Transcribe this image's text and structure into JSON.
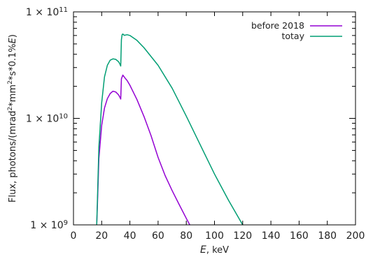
{
  "chart_data": {
    "type": "line",
    "xlabel": "E, keV",
    "ylabel": "Flux, photons/(mrad²*mm²*s*0.1%E)",
    "xlim": [
      0,
      200
    ],
    "ylim": [
      1000000000,
      100000000000
    ],
    "yscale": "log",
    "x_ticks": [
      "0",
      "20",
      "40",
      "60",
      "80",
      "100",
      "120",
      "140",
      "160",
      "180",
      "200"
    ],
    "y_ticks": [
      {
        "mantissa": "1 × 10",
        "exp": "9",
        "value": 1000000000
      },
      {
        "mantissa": "1 × 10",
        "exp": "10",
        "value": 10000000000
      },
      {
        "mantissa": "1 × 10",
        "exp": "11",
        "value": 100000000000
      }
    ],
    "legend_position": "top-right",
    "grid": false,
    "series": [
      {
        "name": "before 2018",
        "color": "#9400d3",
        "x": [
          16.5,
          17,
          18,
          20,
          22,
          24,
          26,
          28,
          30,
          32,
          33,
          33.5,
          34,
          35,
          36,
          37,
          38,
          40,
          45,
          50,
          55,
          60,
          65,
          70,
          75,
          80,
          82.5
        ],
        "y": [
          1000000000.0,
          1600000000.0,
          4200000000.0,
          8600000000.0,
          12500000000.0,
          15300000000.0,
          17100000000.0,
          18000000000.0,
          17700000000.0,
          16600000000.0,
          15700000000.0,
          15200000000.0,
          23500000000.0,
          25500000000.0,
          24500000000.0,
          23500000000.0,
          22700000000.0,
          20500000000.0,
          15000000000.0,
          10400000000.0,
          6900000000.0,
          4300000000.0,
          2900000000.0,
          2100000000.0,
          1550000000.0,
          1150000000.0,
          1000000000.0
        ]
      },
      {
        "name": "totay",
        "color": "#009e73",
        "x": [
          16.5,
          17,
          18,
          20,
          22,
          24,
          26,
          28,
          30,
          32,
          33,
          33.5,
          34,
          34.5,
          35,
          36,
          38,
          40,
          45,
          50,
          60,
          70,
          80,
          90,
          100,
          110,
          120
        ],
        "y": [
          1000000000.0,
          1800000000.0,
          5400000000.0,
          14000000000.0,
          24500000000.0,
          31500000000.0,
          35200000000.0,
          36200000000.0,
          35800000000.0,
          34000000000.0,
          32200000000.0,
          31000000000.0,
          55000000000.0,
          61000000000.0,
          62000000000.0,
          60200000000.0,
          61000000000.0,
          60000000000.0,
          54000000000.0,
          46000000000.0,
          31500000000.0,
          19200000000.0,
          10500000000.0,
          5600000000.0,
          3000000000.0,
          1700000000.0,
          1000000000.0
        ]
      }
    ]
  }
}
